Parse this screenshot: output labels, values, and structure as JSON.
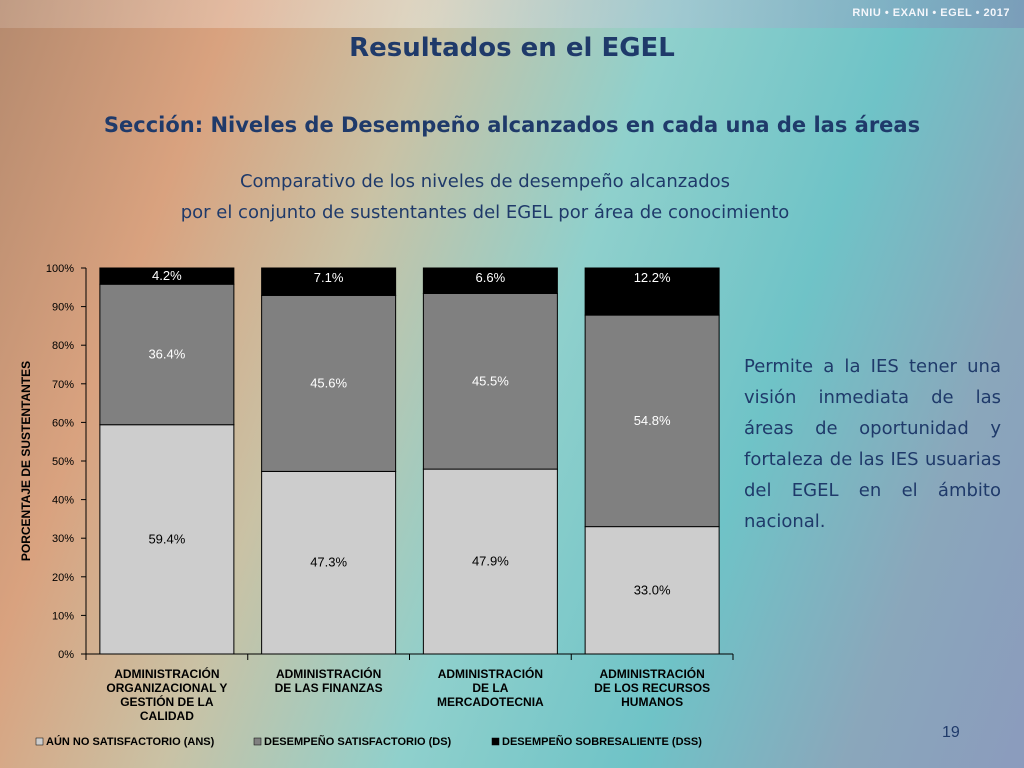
{
  "header": {
    "brand": "RNIU • EXANI • EGEL • 2017"
  },
  "slide": {
    "title": "Resultados en el EGEL",
    "section": "Sección: Niveles de Desempeño alcanzados en cada una de las áreas",
    "subtitle_line1": "Comparativo de los niveles de desempeño alcanzados",
    "subtitle_line2": "por el conjunto de sustentantes del EGEL por área de conocimiento",
    "note": "Permite a la IES tener una visión inmediata de las áreas de oportunidad y fortaleza de las IES usuarias del EGEL en el ámbito nacional.",
    "page_number": "19"
  },
  "colors": {
    "ans": "#cdcdcd",
    "ds": "#808080",
    "dss": "#000000",
    "title": "#1f3a6a"
  },
  "chart_data": {
    "type": "bar",
    "stacked": true,
    "title": "",
    "xlabel": "",
    "ylabel": "PORCENTAJE DE SUSTENTANTES",
    "ylim": [
      0,
      100
    ],
    "yticks": [
      "0%",
      "10%",
      "20%",
      "30%",
      "40%",
      "50%",
      "60%",
      "70%",
      "80%",
      "90%",
      "100%"
    ],
    "categories": [
      [
        "ADMINISTRACIÓN",
        "ORGANIZACIONAL  Y",
        "GESTIÓN DE LA",
        "CALIDAD"
      ],
      [
        "ADMINISTRACIÓN",
        "DE LAS FINANZAS"
      ],
      [
        "ADMINISTRACIÓN",
        "DE LA",
        "MERCADOTECNIA"
      ],
      [
        "ADMINISTRACIÓN",
        "DE LOS RECURSOS",
        "HUMANOS"
      ]
    ],
    "series": [
      {
        "name": "AÚN NO SATISFACTORIO  (ANS)",
        "values": [
          59.4,
          47.3,
          47.9,
          33.0
        ],
        "labels": [
          "59.4%",
          "47.3%",
          "47.9%",
          "33.0%"
        ]
      },
      {
        "name": "DESEMPEÑO SATISFACTORIO  (DS)",
        "values": [
          36.4,
          45.6,
          45.5,
          54.8
        ],
        "labels": [
          "36.4%",
          "45.6%",
          "45.5%",
          "54.8%"
        ]
      },
      {
        "name": "DESEMPEÑO SOBRESALIENTE  (DSS)",
        "values": [
          4.2,
          7.1,
          6.6,
          12.2
        ],
        "labels": [
          "4.2%",
          "7.1%",
          "6.6%",
          "12.2%"
        ]
      }
    ],
    "legend": "bottom",
    "grid": false
  }
}
